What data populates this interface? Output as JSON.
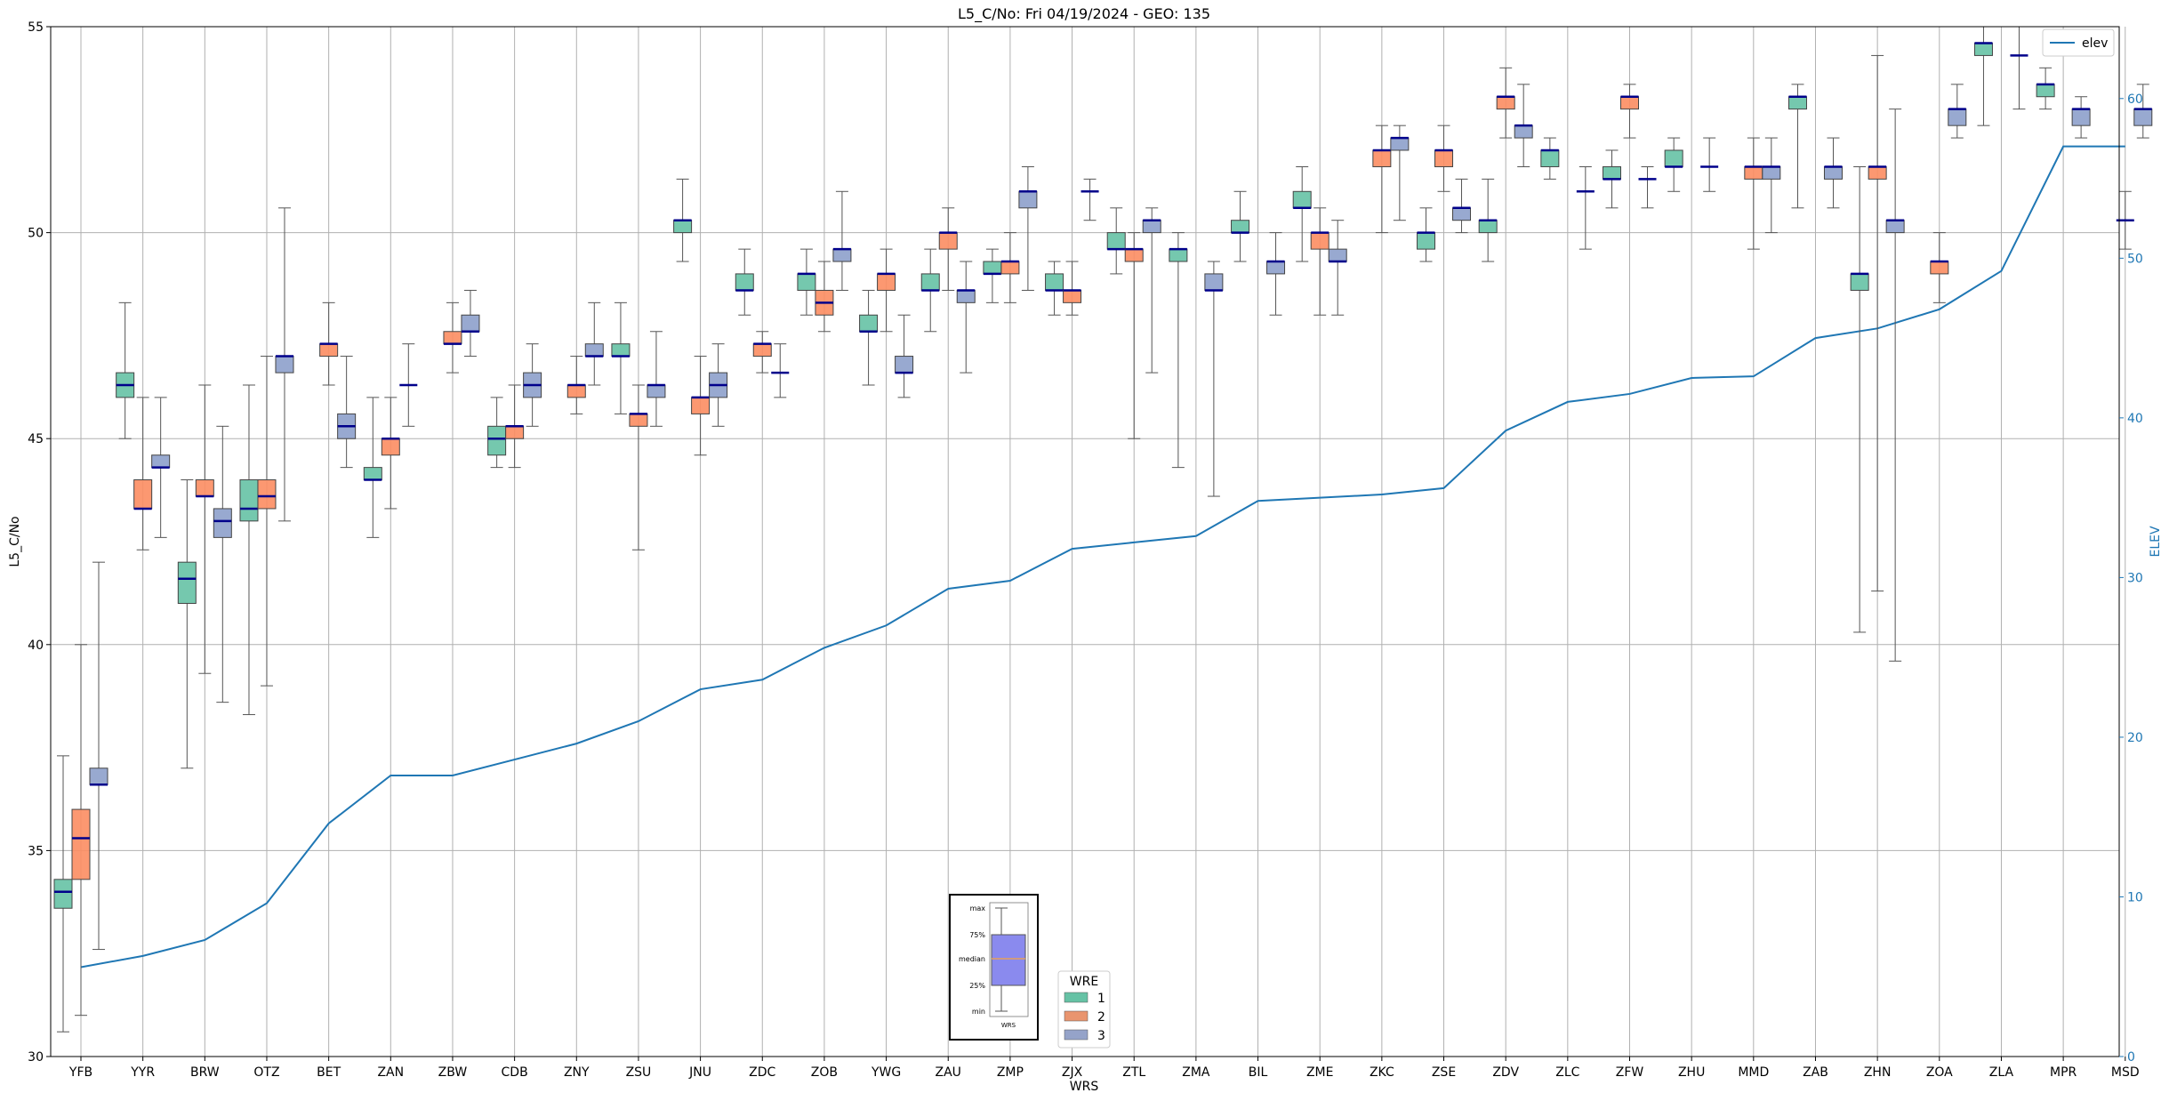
{
  "chart_data": {
    "type": "box",
    "title": "L5_C/No: Fri 04/19/2024 - GEO: 135",
    "xlabel": "WRS",
    "ylabel": "L5_C/No",
    "y2label": "ELEV",
    "ylim": [
      30,
      55
    ],
    "y2lim": [
      0,
      64.5
    ],
    "yticks": [
      30,
      35,
      40,
      45,
      50,
      55
    ],
    "y2ticks": [
      0,
      10,
      20,
      30,
      40,
      50,
      60
    ],
    "grid": true,
    "categories": [
      "YFB",
      "YYR",
      "BRW",
      "OTZ",
      "BET",
      "ZAN",
      "ZBW",
      "CDB",
      "ZNY",
      "ZSU",
      "JNU",
      "ZDC",
      "ZOB",
      "YWG",
      "ZAU",
      "ZMP",
      "ZJX",
      "ZTL",
      "ZMA",
      "BIL",
      "ZME",
      "ZKC",
      "ZSE",
      "ZDV",
      "ZLC",
      "ZFW",
      "ZHU",
      "MMD",
      "ZAB",
      "ZHN",
      "ZOA",
      "ZLA",
      "MPR",
      "MSD"
    ],
    "legend_title": "WRE",
    "legend_location": "lower-center",
    "colors": {
      "1": "#66c2a5",
      "2": "#fc8d62",
      "3": "#8da0cb",
      "elev": "#1f77b4",
      "median": "#00008b"
    },
    "series": [
      {
        "name": "1",
        "values": [
          [
            30.6,
            33.6,
            34.0,
            34.3,
            37.3
          ],
          [
            45.0,
            46.0,
            46.3,
            46.6,
            48.3
          ],
          [
            37.0,
            41.0,
            41.6,
            42.0,
            44.0
          ],
          [
            38.3,
            43.0,
            43.3,
            44.0,
            46.3
          ],
          null,
          [
            42.6,
            44.0,
            44.0,
            44.3,
            46.0
          ],
          null,
          [
            44.3,
            44.6,
            45.0,
            45.3,
            46.0
          ],
          null,
          [
            45.6,
            47.0,
            47.0,
            47.3,
            48.3
          ],
          [
            49.3,
            50.0,
            50.3,
            50.3,
            51.3
          ],
          [
            48.0,
            48.6,
            48.6,
            49.0,
            49.6
          ],
          [
            48.0,
            48.6,
            49.0,
            49.0,
            49.6
          ],
          [
            46.3,
            47.6,
            47.6,
            48.0,
            48.6
          ],
          [
            47.6,
            48.6,
            48.6,
            49.0,
            49.6
          ],
          [
            48.3,
            49.0,
            49.0,
            49.3,
            49.6
          ],
          [
            48.0,
            48.6,
            48.6,
            49.0,
            49.3
          ],
          [
            49.0,
            49.6,
            49.6,
            50.0,
            50.6
          ],
          [
            44.3,
            49.3,
            49.6,
            49.6,
            50.0
          ],
          [
            49.3,
            50.0,
            50.0,
            50.3,
            51.0
          ],
          [
            49.3,
            50.6,
            50.6,
            51.0,
            51.6
          ],
          null,
          [
            49.3,
            49.6,
            50.0,
            50.0,
            50.6
          ],
          [
            49.3,
            50.0,
            50.3,
            50.3,
            51.3
          ],
          [
            51.3,
            51.6,
            52.0,
            52.0,
            52.3
          ],
          [
            50.6,
            51.3,
            51.3,
            51.6,
            52.0
          ],
          [
            51.0,
            51.6,
            51.6,
            52.0,
            52.3
          ],
          null,
          [
            50.6,
            53.0,
            53.3,
            53.3,
            53.6
          ],
          [
            40.3,
            48.6,
            49.0,
            49.0,
            51.6
          ],
          null,
          [
            52.6,
            54.3,
            54.6,
            54.6,
            55.0
          ],
          [
            53.0,
            53.3,
            53.6,
            53.6,
            54.0
          ],
          null
        ]
      },
      {
        "name": "2",
        "values": [
          [
            31.0,
            34.3,
            35.3,
            36.0,
            40.0
          ],
          [
            42.3,
            43.3,
            43.3,
            44.0,
            46.0
          ],
          [
            39.3,
            43.6,
            43.6,
            44.0,
            46.3
          ],
          [
            39.0,
            43.3,
            43.6,
            44.0,
            47.0
          ],
          [
            46.3,
            47.0,
            47.3,
            47.3,
            48.3
          ],
          [
            43.3,
            44.6,
            45.0,
            45.0,
            46.0
          ],
          [
            46.6,
            47.3,
            47.3,
            47.6,
            48.3
          ],
          [
            44.3,
            45.0,
            45.3,
            45.3,
            46.3
          ],
          [
            45.6,
            46.0,
            46.3,
            46.3,
            47.0
          ],
          [
            42.3,
            45.3,
            45.6,
            45.6,
            46.3
          ],
          [
            44.6,
            45.6,
            46.0,
            46.0,
            47.0
          ],
          [
            46.6,
            47.0,
            47.3,
            47.3,
            47.6
          ],
          [
            47.6,
            48.0,
            48.3,
            48.6,
            49.3
          ],
          [
            47.6,
            48.6,
            49.0,
            49.0,
            49.6
          ],
          [
            48.6,
            49.6,
            50.0,
            50.0,
            50.6
          ],
          [
            48.3,
            49.0,
            49.3,
            49.3,
            50.0
          ],
          [
            48.0,
            48.3,
            48.6,
            48.6,
            49.3
          ],
          [
            45.0,
            49.3,
            49.6,
            49.6,
            50.0
          ],
          null,
          null,
          [
            48.0,
            49.6,
            50.0,
            50.0,
            50.6
          ],
          [
            50.0,
            51.6,
            52.0,
            52.0,
            52.6
          ],
          [
            51.0,
            51.6,
            52.0,
            52.0,
            52.6
          ],
          [
            52.3,
            53.0,
            53.3,
            53.3,
            54.0
          ],
          null,
          [
            52.3,
            53.0,
            53.3,
            53.3,
            53.6
          ],
          null,
          [
            49.6,
            51.3,
            51.6,
            51.6,
            52.3
          ],
          null,
          [
            41.3,
            51.3,
            51.6,
            51.6,
            54.3
          ],
          [
            48.3,
            49.0,
            49.3,
            49.3,
            50.0
          ],
          null,
          null,
          [
            49.6,
            50.3,
            50.3,
            50.3,
            51.0
          ]
        ]
      },
      {
        "name": "3",
        "values": [
          [
            32.6,
            36.6,
            36.6,
            37.0,
            42.0
          ],
          [
            42.6,
            44.3,
            44.3,
            44.6,
            46.0
          ],
          [
            38.6,
            42.6,
            43.0,
            43.3,
            45.3
          ],
          [
            43.0,
            46.6,
            47.0,
            47.0,
            50.6
          ],
          [
            44.3,
            45.0,
            45.3,
            45.6,
            47.0
          ],
          [
            45.3,
            46.3,
            46.3,
            46.3,
            47.3
          ],
          [
            47.0,
            47.6,
            47.6,
            48.0,
            48.6
          ],
          [
            45.3,
            46.0,
            46.3,
            46.6,
            47.3
          ],
          [
            46.3,
            47.0,
            47.0,
            47.3,
            48.3
          ],
          [
            45.3,
            46.0,
            46.3,
            46.3,
            47.6
          ],
          [
            45.3,
            46.0,
            46.3,
            46.6,
            47.3
          ],
          [
            46.0,
            46.6,
            46.6,
            46.6,
            47.3
          ],
          [
            48.6,
            49.3,
            49.6,
            49.6,
            51.0
          ],
          [
            46.0,
            46.6,
            46.6,
            47.0,
            48.0
          ],
          [
            46.6,
            48.3,
            48.6,
            48.6,
            49.3
          ],
          [
            48.6,
            50.6,
            51.0,
            51.0,
            51.6
          ],
          [
            50.3,
            51.0,
            51.0,
            51.0,
            51.3
          ],
          [
            46.6,
            50.0,
            50.3,
            50.3,
            50.6
          ],
          [
            43.6,
            48.6,
            48.6,
            49.0,
            49.3
          ],
          [
            48.0,
            49.0,
            49.3,
            49.3,
            50.0
          ],
          [
            48.0,
            49.3,
            49.3,
            49.6,
            50.3
          ],
          [
            50.3,
            52.0,
            52.3,
            52.3,
            52.6
          ],
          [
            50.0,
            50.3,
            50.6,
            50.6,
            51.3
          ],
          [
            51.6,
            52.3,
            52.6,
            52.6,
            53.6
          ],
          [
            49.6,
            51.0,
            51.0,
            51.0,
            51.6
          ],
          [
            50.6,
            51.3,
            51.3,
            51.3,
            51.6
          ],
          [
            51.0,
            51.6,
            51.6,
            51.6,
            52.3
          ],
          [
            50.0,
            51.3,
            51.6,
            51.6,
            52.3
          ],
          [
            50.6,
            51.3,
            51.6,
            51.6,
            52.3
          ],
          [
            39.6,
            50.0,
            50.3,
            50.3,
            53.0
          ],
          [
            52.3,
            52.6,
            53.0,
            53.0,
            53.6
          ],
          [
            53.0,
            54.3,
            54.3,
            54.3,
            55.0
          ],
          [
            52.3,
            52.6,
            53.0,
            53.0,
            53.3
          ],
          [
            52.3,
            52.6,
            53.0,
            53.0,
            53.6
          ]
        ]
      }
    ],
    "elev": {
      "name": "elev",
      "values": [
        5.6,
        6.3,
        7.3,
        9.6,
        14.6,
        17.6,
        17.6,
        18.6,
        19.6,
        21.0,
        23.0,
        23.6,
        25.6,
        27.0,
        29.3,
        29.8,
        31.8,
        32.2,
        32.6,
        34.8,
        35.0,
        35.2,
        35.6,
        39.2,
        41.0,
        41.5,
        42.5,
        42.6,
        45.0,
        45.6,
        46.8,
        49.2,
        57.0,
        57.0
      ]
    },
    "inset_legend": {
      "labels": [
        "max",
        "75%",
        "median",
        "25%",
        "min"
      ],
      "xlabel": "WRS"
    }
  }
}
